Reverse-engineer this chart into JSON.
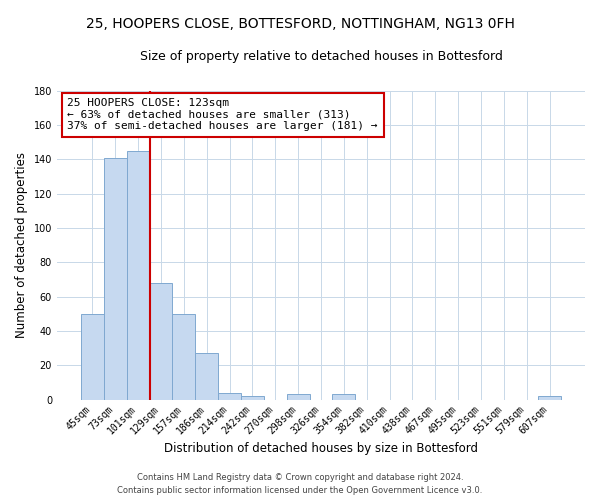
{
  "title": "25, HOOPERS CLOSE, BOTTESFORD, NOTTINGHAM, NG13 0FH",
  "subtitle": "Size of property relative to detached houses in Bottesford",
  "xlabel": "Distribution of detached houses by size in Bottesford",
  "ylabel": "Number of detached properties",
  "footer_line1": "Contains HM Land Registry data © Crown copyright and database right 2024.",
  "footer_line2": "Contains public sector information licensed under the Open Government Licence v3.0.",
  "bin_labels": [
    "45sqm",
    "73sqm",
    "101sqm",
    "129sqm",
    "157sqm",
    "186sqm",
    "214sqm",
    "242sqm",
    "270sqm",
    "298sqm",
    "326sqm",
    "354sqm",
    "382sqm",
    "410sqm",
    "438sqm",
    "467sqm",
    "495sqm",
    "523sqm",
    "551sqm",
    "579sqm",
    "607sqm"
  ],
  "bar_heights": [
    50,
    141,
    145,
    68,
    50,
    27,
    4,
    2,
    0,
    3,
    0,
    3,
    0,
    0,
    0,
    0,
    0,
    0,
    0,
    0,
    2
  ],
  "bar_color": "#c6d9f0",
  "bar_edge_color": "#7fa8d0",
  "property_line_color": "#cc0000",
  "annotation_line1": "25 HOOPERS CLOSE: 123sqm",
  "annotation_line2": "← 63% of detached houses are smaller (313)",
  "annotation_line3": "37% of semi-detached houses are larger (181) →",
  "annotation_box_color": "#ffffff",
  "annotation_box_edge_color": "#cc0000",
  "ylim": [
    0,
    180
  ],
  "yticks": [
    0,
    20,
    40,
    60,
    80,
    100,
    120,
    140,
    160,
    180
  ],
  "background_color": "#ffffff",
  "grid_color": "#c8d8e8",
  "title_fontsize": 10,
  "subtitle_fontsize": 9,
  "axis_label_fontsize": 8.5,
  "tick_fontsize": 7,
  "annotation_fontsize": 8,
  "footer_fontsize": 6
}
